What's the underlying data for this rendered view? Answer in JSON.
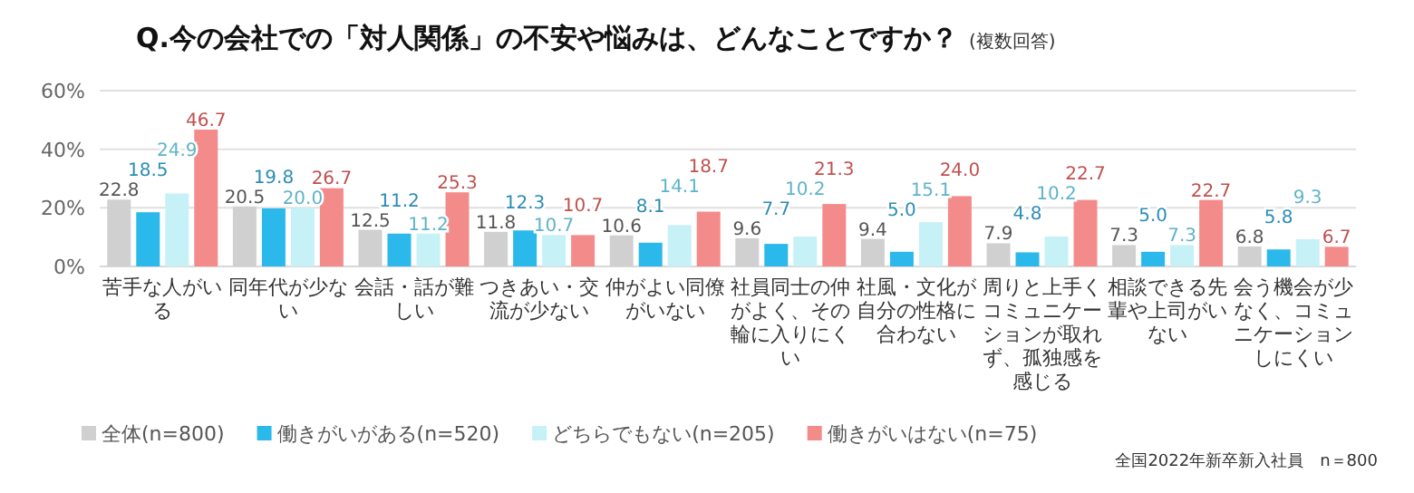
{
  "chart_data": {
    "type": "bar",
    "title": "Q.今の会社での「対人関係」の不安や悩みは、どんなことですか？",
    "subtitle": "(複数回答)",
    "categories": [
      "苦手な人がいる",
      "同年代が少ない",
      "会話・話が難しい",
      "つきあい・交流が少ない",
      "仲がよい同僚がいない",
      "社員同士の仲がよく、その輪に入りにくい",
      "社風・文化が自分の性格に合わない",
      "周りと上手くコミュニケーションが取れず、孤独感を感じる",
      "相談できる先輩や上司がいない",
      "会う機会が少なく、コミュニケーションしにくい"
    ],
    "series": [
      {
        "name": "全体(n=800)",
        "color": "#d0d0d0",
        "values": [
          22.8,
          20.5,
          12.5,
          11.8,
          10.6,
          9.6,
          9.4,
          7.9,
          7.3,
          6.8
        ],
        "value_labels": [
          "22.8",
          "20.5",
          "12.5",
          "11.8",
          "10.6",
          "9.6",
          "9.4",
          "7.9",
          "7.3",
          "6.8"
        ]
      },
      {
        "name": "働きがいがある(n=520)",
        "color": "#2bb8ea",
        "values": [
          18.5,
          19.8,
          11.2,
          12.3,
          8.1,
          7.7,
          5.0,
          4.8,
          5.0,
          5.8
        ],
        "value_labels": [
          "18.5",
          "19.8",
          "11.2",
          "12.3",
          "8.1",
          "7.7",
          "5.0",
          "4.8",
          "5.0",
          "5.8"
        ]
      },
      {
        "name": "どちらでもない(n=205)",
        "color": "#c6f1f7",
        "values": [
          24.9,
          20.0,
          11.2,
          10.7,
          14.1,
          10.2,
          15.1,
          10.2,
          7.3,
          9.3
        ],
        "value_labels": [
          "24.9",
          "20.0",
          "11.2",
          "10.7",
          "14.1",
          "10.2",
          "15.1",
          "10.2",
          "7.3",
          "9.3"
        ]
      },
      {
        "name": "働きがいはない(n=75)",
        "color": "#f48b8b",
        "values": [
          46.7,
          26.7,
          25.3,
          10.7,
          18.7,
          21.3,
          24.0,
          22.7,
          22.7,
          6.7
        ],
        "value_labels": [
          "46.7",
          "26.7",
          "25.3",
          "10.7",
          "18.7",
          "21.3",
          "24.0",
          "22.7",
          "22.7",
          "6.7"
        ]
      }
    ],
    "ylim": [
      0,
      60
    ],
    "yticks": [
      {
        "value": 0,
        "label": "0%"
      },
      {
        "value": 20,
        "label": "20%"
      },
      {
        "value": 40,
        "label": "40%"
      },
      {
        "value": 60,
        "label": "60%"
      }
    ],
    "grid": "y",
    "legend": "bottom",
    "annotations": [
      "全国2022年新卒新入社員　n＝800"
    ]
  }
}
